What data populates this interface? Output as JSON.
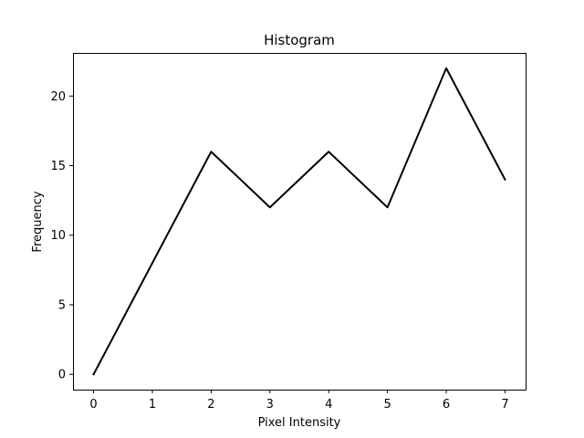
{
  "chart_data": {
    "type": "line",
    "title": "Histogram",
    "xlabel": "Pixel Intensity",
    "ylabel": "Frequency",
    "x": [
      0,
      1,
      2,
      3,
      4,
      5,
      6,
      7
    ],
    "series": [
      {
        "values": [
          0,
          8,
          16,
          12,
          16,
          12,
          22,
          14
        ],
        "color": "#000000"
      }
    ],
    "xlim": [
      -0.35,
      7.35
    ],
    "ylim": [
      -1.1,
      23.1
    ],
    "xticks": [
      0,
      1,
      2,
      3,
      4,
      5,
      6,
      7
    ],
    "yticks": [
      0,
      5,
      10,
      15,
      20
    ],
    "grid": false,
    "legend": "none"
  }
}
